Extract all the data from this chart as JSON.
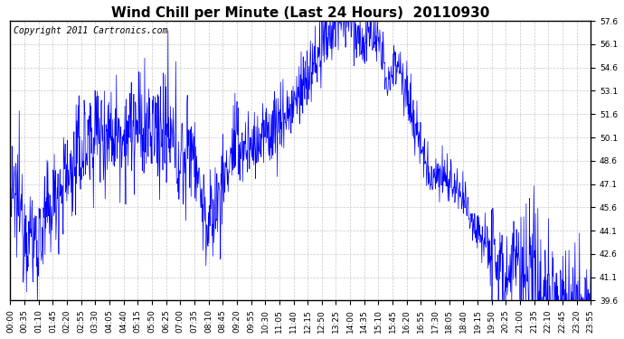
{
  "title": "Wind Chill per Minute (Last 24 Hours)  20110930",
  "copyright": "Copyright 2011 Cartronics.com",
  "line_color": "#0000FF",
  "bg_color": "#ffffff",
  "plot_bg_color": "#ffffff",
  "grid_color": "#c8c8c8",
  "ylim": [
    39.6,
    57.6
  ],
  "yticks": [
    39.6,
    41.1,
    42.6,
    44.1,
    45.6,
    47.1,
    48.6,
    50.1,
    51.6,
    53.1,
    54.6,
    56.1,
    57.6
  ],
  "xtick_labels": [
    "00:00",
    "00:35",
    "01:10",
    "01:45",
    "02:20",
    "02:55",
    "03:30",
    "04:05",
    "04:40",
    "05:15",
    "05:50",
    "06:25",
    "07:00",
    "07:35",
    "08:10",
    "08:45",
    "09:20",
    "09:55",
    "10:30",
    "11:05",
    "11:40",
    "12:15",
    "12:50",
    "13:25",
    "14:00",
    "14:35",
    "15:10",
    "15:45",
    "16:20",
    "16:55",
    "17:30",
    "18:05",
    "18:40",
    "19:15",
    "19:50",
    "20:25",
    "21:00",
    "21:35",
    "22:10",
    "22:45",
    "23:20",
    "23:55"
  ],
  "title_fontsize": 11,
  "copyright_fontsize": 7,
  "tick_fontsize": 6.5,
  "figsize": [
    6.9,
    3.75
  ],
  "dpi": 100
}
